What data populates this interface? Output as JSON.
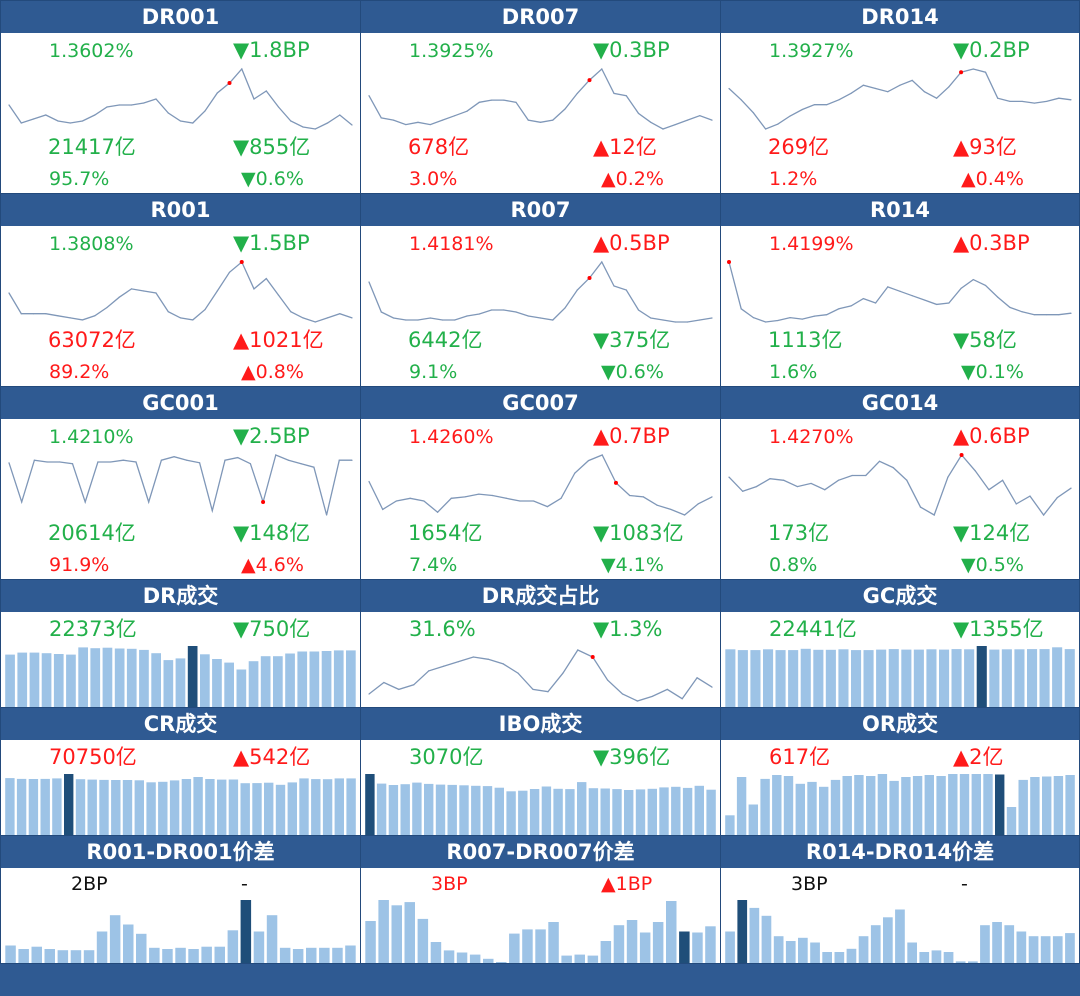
{
  "colors": {
    "up": "#ff1a1a",
    "down": "#22b04a",
    "flat": "#111111",
    "header": "#2f5a92",
    "line": "#7f97b8",
    "bar": "#9dc3e6",
    "bar_highlight": "#1f4e79",
    "peak_dot": "#ff0000"
  },
  "panels": [
    {
      "id": "dr001",
      "title": "DR001",
      "type": "line",
      "rate": "1.3602%",
      "rate_dir": "down",
      "rate_chg": "▼1.8BP",
      "rate_chg_dir": "down",
      "volume": "21417亿",
      "volume_dir": "down",
      "volume_chg": "▼855亿",
      "volume_chg_dir": "down",
      "share": "95.7%",
      "share_dir": "down",
      "share_chg": "▼0.6%",
      "share_chg_dir": "down",
      "peak_index": 18
    },
    {
      "id": "dr007",
      "title": "DR007",
      "type": "line",
      "rate": "1.3925%",
      "rate_dir": "down",
      "rate_chg": "▼0.3BP",
      "rate_chg_dir": "down",
      "volume": "678亿",
      "volume_dir": "up",
      "volume_chg": "▲12亿",
      "volume_chg_dir": "up",
      "share": "3.0%",
      "share_dir": "up",
      "share_chg": "▲0.2%",
      "share_chg_dir": "up",
      "peak_index": 18
    },
    {
      "id": "dr014",
      "title": "DR014",
      "type": "line",
      "rate": "1.3927%",
      "rate_dir": "down",
      "rate_chg": "▼0.2BP",
      "rate_chg_dir": "down",
      "volume": "269亿",
      "volume_dir": "up",
      "volume_chg": "▲93亿",
      "volume_chg_dir": "up",
      "share": "1.2%",
      "share_dir": "up",
      "share_chg": "▲0.4%",
      "share_chg_dir": "up",
      "peak_index": 19
    },
    {
      "id": "r001",
      "title": "R001",
      "type": "line",
      "rate": "1.3808%",
      "rate_dir": "down",
      "rate_chg": "▼1.5BP",
      "rate_chg_dir": "down",
      "volume": "63072亿",
      "volume_dir": "up",
      "volume_chg": "▲1021亿",
      "volume_chg_dir": "up",
      "share": "89.2%",
      "share_dir": "up",
      "share_chg": "▲0.8%",
      "share_chg_dir": "up",
      "peak_index": 19
    },
    {
      "id": "r007",
      "title": "R007",
      "type": "line",
      "rate": "1.4181%",
      "rate_dir": "up",
      "rate_chg": "▲0.5BP",
      "rate_chg_dir": "up",
      "volume": "6442亿",
      "volume_dir": "down",
      "volume_chg": "▼375亿",
      "volume_chg_dir": "down",
      "share": "9.1%",
      "share_dir": "down",
      "share_chg": "▼0.6%",
      "share_chg_dir": "down",
      "peak_index": 18
    },
    {
      "id": "r014",
      "title": "R014",
      "type": "line",
      "rate": "1.4199%",
      "rate_dir": "up",
      "rate_chg": "▲0.3BP",
      "rate_chg_dir": "up",
      "volume": "1113亿",
      "volume_dir": "down",
      "volume_chg": "▼58亿",
      "volume_chg_dir": "down",
      "share": "1.6%",
      "share_dir": "down",
      "share_chg": "▼0.1%",
      "share_chg_dir": "down",
      "peak_index": 0
    },
    {
      "id": "gc001",
      "title": "GC001",
      "type": "line",
      "rate": "1.4210%",
      "rate_dir": "down",
      "rate_chg": "▼2.5BP",
      "rate_chg_dir": "down",
      "volume": "20614亿",
      "volume_dir": "down",
      "volume_chg": "▼148亿",
      "volume_chg_dir": "down",
      "share": "91.9%",
      "share_dir": "up",
      "share_chg": "▲4.6%",
      "share_chg_dir": "up",
      "peak_index": 20
    },
    {
      "id": "gc007",
      "title": "GC007",
      "type": "line",
      "rate": "1.4260%",
      "rate_dir": "up",
      "rate_chg": "▲0.7BP",
      "rate_chg_dir": "up",
      "volume": "1654亿",
      "volume_dir": "down",
      "volume_chg": "▼1083亿",
      "volume_chg_dir": "down",
      "share": "7.4%",
      "share_dir": "down",
      "share_chg": "▼4.1%",
      "share_chg_dir": "down",
      "peak_index": 18
    },
    {
      "id": "gc014",
      "title": "GC014",
      "type": "line",
      "rate": "1.4270%",
      "rate_dir": "up",
      "rate_chg": "▲0.6BP",
      "rate_chg_dir": "up",
      "volume": "173亿",
      "volume_dir": "down",
      "volume_chg": "▼124亿",
      "volume_chg_dir": "down",
      "share": "0.8%",
      "share_dir": "down",
      "share_chg": "▼0.5%",
      "share_chg_dir": "down",
      "peak_index": 17
    },
    {
      "id": "dr-volume",
      "title": "DR成交",
      "type": "bar",
      "value": "22373亿",
      "value_dir": "down",
      "chg": "▼750亿",
      "chg_dir": "down",
      "highlight_index": 15
    },
    {
      "id": "dr-share",
      "title": "DR成交占比",
      "type": "line",
      "value": "31.6%",
      "value_dir": "down",
      "chg": "▼1.3%",
      "chg_dir": "down",
      "peak_index": 15
    },
    {
      "id": "gc-volume",
      "title": "GC成交",
      "type": "bar",
      "value": "22441亿",
      "value_dir": "down",
      "chg": "▼1355亿",
      "chg_dir": "down",
      "highlight_index": 20
    },
    {
      "id": "cr-volume",
      "title": "CR成交",
      "type": "bar",
      "value": "70750亿",
      "value_dir": "up",
      "chg": "▲542亿",
      "chg_dir": "up",
      "highlight_index": 5
    },
    {
      "id": "ibo-volume",
      "title": "IBO成交",
      "type": "bar",
      "value": "3070亿",
      "value_dir": "down",
      "chg": "▼396亿",
      "chg_dir": "down",
      "highlight_index": 0
    },
    {
      "id": "or-volume",
      "title": "OR成交",
      "type": "bar",
      "value": "617亿",
      "value_dir": "up",
      "chg": "▲2亿",
      "chg_dir": "up",
      "highlight_index": 23
    },
    {
      "id": "r001-dr001-spread",
      "title": "R001-DR001价差",
      "type": "bar",
      "value": "2BP",
      "value_dir": "flat",
      "chg": "-",
      "chg_dir": "flat",
      "highlight_index": 18
    },
    {
      "id": "r007-dr007-spread",
      "title": "R007-DR007价差",
      "type": "bar",
      "value": "3BP",
      "value_dir": "up",
      "chg": "▲1BP",
      "chg_dir": "up",
      "highlight_index": 24
    },
    {
      "id": "r014-dr014-spread",
      "title": "R014-DR014价差",
      "type": "bar",
      "value": "3BP",
      "value_dir": "flat",
      "chg": "-",
      "chg_dir": "flat",
      "highlight_index": 1
    }
  ],
  "chart_data": [
    {
      "type": "line",
      "title": "DR001",
      "values": [
        1.52,
        1.43,
        1.45,
        1.47,
        1.44,
        1.43,
        1.44,
        1.47,
        1.51,
        1.52,
        1.52,
        1.53,
        1.55,
        1.48,
        1.44,
        1.43,
        1.49,
        1.58,
        1.63,
        1.7,
        1.55,
        1.59,
        1.51,
        1.44,
        1.41,
        1.4,
        1.43,
        1.47,
        1.42
      ]
    },
    {
      "type": "line",
      "title": "DR007",
      "values": [
        1.86,
        1.76,
        1.75,
        1.73,
        1.74,
        1.73,
        1.75,
        1.77,
        1.79,
        1.83,
        1.84,
        1.84,
        1.83,
        1.75,
        1.74,
        1.75,
        1.8,
        1.87,
        1.93,
        1.98,
        1.87,
        1.86,
        1.78,
        1.74,
        1.71,
        1.73,
        1.75,
        1.77,
        1.75
      ]
    },
    {
      "type": "line",
      "title": "DR014",
      "values": [
        1.95,
        1.88,
        1.8,
        1.7,
        1.73,
        1.78,
        1.82,
        1.85,
        1.85,
        1.88,
        1.92,
        1.97,
        1.95,
        1.93,
        1.97,
        2.0,
        1.93,
        1.89,
        1.96,
        2.05,
        2.07,
        2.05,
        1.89,
        1.87,
        1.87,
        1.86,
        1.87,
        1.89,
        1.88
      ]
    },
    {
      "type": "line",
      "title": "R001",
      "values": [
        1.56,
        1.46,
        1.46,
        1.46,
        1.45,
        1.44,
        1.43,
        1.45,
        1.49,
        1.54,
        1.58,
        1.57,
        1.56,
        1.47,
        1.44,
        1.43,
        1.48,
        1.57,
        1.66,
        1.71,
        1.58,
        1.63,
        1.55,
        1.47,
        1.44,
        1.42,
        1.44,
        1.46,
        1.44
      ]
    },
    {
      "type": "line",
      "title": "R007",
      "values": [
        2.05,
        1.9,
        1.87,
        1.86,
        1.86,
        1.87,
        1.86,
        1.86,
        1.88,
        1.89,
        1.91,
        1.91,
        1.9,
        1.88,
        1.87,
        1.86,
        1.92,
        2.01,
        2.07,
        2.15,
        2.03,
        2.01,
        1.91,
        1.87,
        1.86,
        1.85,
        1.85,
        1.86,
        1.87
      ]
    },
    {
      "type": "line",
      "title": "R014",
      "values": [
        2.25,
        1.93,
        1.87,
        1.84,
        1.85,
        1.87,
        1.86,
        1.88,
        1.89,
        1.93,
        1.95,
        2.0,
        1.97,
        2.08,
        2.05,
        2.02,
        1.99,
        1.96,
        1.97,
        2.07,
        2.13,
        2.09,
        2.01,
        1.94,
        1.91,
        1.89,
        1.89,
        1.89,
        1.9
      ]
    },
    {
      "type": "line",
      "title": "GC001",
      "values": [
        1.85,
        1.4,
        1.88,
        1.86,
        1.86,
        1.84,
        1.4,
        1.86,
        1.86,
        1.88,
        1.86,
        1.4,
        1.88,
        1.92,
        1.88,
        1.85,
        1.3,
        1.88,
        1.91,
        1.84,
        1.4,
        1.94,
        1.88,
        1.84,
        1.8,
        1.25,
        1.88,
        1.88
      ]
    },
    {
      "type": "line",
      "title": "GC007",
      "values": [
        1.9,
        1.7,
        1.76,
        1.78,
        1.76,
        1.68,
        1.78,
        1.79,
        1.81,
        1.8,
        1.78,
        1.76,
        1.76,
        1.72,
        1.78,
        1.96,
        2.05,
        2.09,
        1.89,
        1.8,
        1.79,
        1.73,
        1.7,
        1.66,
        1.74,
        1.79
      ]
    },
    {
      "type": "line",
      "title": "GC014",
      "values": [
        1.98,
        1.89,
        1.92,
        1.97,
        1.96,
        1.92,
        1.94,
        1.9,
        1.96,
        1.99,
        1.99,
        2.08,
        2.04,
        1.96,
        1.79,
        1.74,
        1.98,
        2.12,
        2.02,
        1.9,
        1.96,
        1.81,
        1.86,
        1.74,
        1.85,
        1.91
      ]
    },
    {
      "type": "bar",
      "title": "DR成交",
      "values": [
        190,
        197,
        197,
        195,
        192,
        190,
        216,
        213,
        215,
        212,
        211,
        207,
        195,
        170,
        176,
        221,
        191,
        174,
        161,
        136,
        166,
        184,
        184,
        194,
        201,
        201,
        203,
        205,
        205
      ]
    },
    {
      "type": "line",
      "title": "DR成交占比",
      "values": [
        30.9,
        31.4,
        31.1,
        31.3,
        31.9,
        32.1,
        32.3,
        32.5,
        32.4,
        32.2,
        31.8,
        31.1,
        31.0,
        31.8,
        32.8,
        32.5,
        31.5,
        30.9,
        30.6,
        30.8,
        31.1,
        30.7,
        31.6,
        31.2
      ]
    },
    {
      "type": "bar",
      "title": "GC成交",
      "values": [
        225,
        222,
        222,
        225,
        222,
        222,
        227,
        223,
        223,
        225,
        222,
        222,
        224,
        226,
        224,
        224,
        225,
        224,
        226,
        225,
        238,
        224,
        225,
        225,
        226,
        226,
        233,
        226
      ]
    },
    {
      "type": "bar",
      "title": "CR成交",
      "values": [
        716,
        706,
        705,
        706,
        713,
        768,
        702,
        698,
        694,
        693,
        692,
        689,
        663,
        670,
        688,
        705,
        730,
        705,
        697,
        699,
        652,
        654,
        658,
        632,
        662,
        713,
        704,
        702,
        713,
        713
      ]
    },
    {
      "type": "bar",
      "title": "IBO成交",
      "values": [
        4200,
        3540,
        3440,
        3500,
        3610,
        3520,
        3470,
        3450,
        3420,
        3390,
        3370,
        3260,
        3010,
        3050,
        3170,
        3340,
        3180,
        3160,
        3640,
        3220,
        3200,
        3160,
        3100,
        3140,
        3180,
        3280,
        3320,
        3240,
        3390,
        3120
      ]
    },
    {
      "type": "bar",
      "title": "OR成交",
      "values": [
        200,
        590,
        310,
        570,
        610,
        600,
        520,
        540,
        490,
        560,
        600,
        610,
        600,
        620,
        550,
        590,
        600,
        610,
        600,
        620,
        620,
        620,
        620,
        615,
        285,
        560,
        590,
        595,
        600,
        610
      ]
    },
    {
      "type": "bar",
      "title": "R001-DR001价差",
      "values": [
        1.5,
        1.2,
        1.4,
        1.2,
        1.1,
        1.1,
        1.1,
        2.7,
        4.1,
        3.3,
        2.5,
        1.3,
        1.2,
        1.3,
        1.2,
        1.4,
        1.4,
        2.8,
        5.4,
        2.7,
        4.1,
        1.3,
        1.2,
        1.3,
        1.3,
        1.3,
        1.5
      ]
    },
    {
      "type": "bar",
      "title": "R007-DR007价差",
      "values": [
        4.0,
        6.0,
        5.5,
        5.8,
        4.2,
        2.0,
        1.2,
        1.0,
        0.8,
        0.4,
        0.1,
        2.8,
        3.2,
        3.2,
        3.9,
        0.7,
        0.8,
        0.7,
        2.1,
        3.6,
        4.1,
        2.9,
        3.9,
        5.9,
        3.0,
        2.9,
        3.5
      ]
    },
    {
      "type": "bar",
      "title": "R014-DR014价差",
      "values": [
        2.0,
        4.0,
        3.5,
        3.0,
        1.7,
        1.4,
        1.6,
        1.3,
        0.7,
        0.7,
        0.9,
        1.7,
        2.4,
        2.9,
        3.4,
        1.3,
        0.7,
        0.8,
        0.7,
        0.1,
        0.1,
        2.4,
        2.6,
        2.4,
        2.0,
        1.7,
        1.7,
        1.7,
        1.9
      ]
    }
  ]
}
